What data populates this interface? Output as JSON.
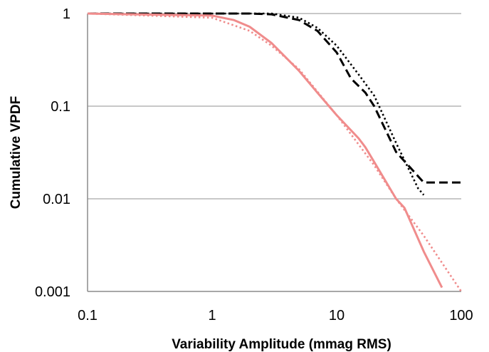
{
  "chart_data": {
    "type": "line",
    "title": "",
    "xlabel": "Variability Amplitude (mmag RMS)",
    "ylabel": "Cumulative VPDF",
    "xscale": "log",
    "yscale": "log",
    "xlim": [
      0.1,
      100
    ],
    "ylim": [
      0.001,
      1
    ],
    "xticks": [
      0.1,
      1,
      10,
      100
    ],
    "xtick_labels": [
      "0.1",
      "1",
      "10",
      "100"
    ],
    "yticks": [
      0.001,
      0.01,
      0.1,
      1
    ],
    "ytick_labels": [
      "0.001",
      "0.01",
      "0.1",
      "1"
    ],
    "grid": "horizontal",
    "legend": "none",
    "series": [
      {
        "color": "#000000",
        "style": "dashed",
        "x": [
          0.1,
          1,
          2,
          3,
          5,
          7,
          10,
          13,
          17,
          20,
          30,
          50,
          100
        ],
        "y": [
          1,
          1,
          1,
          0.98,
          0.85,
          0.65,
          0.38,
          0.2,
          0.14,
          0.1,
          0.032,
          0.015,
          0.015
        ]
      },
      {
        "color": "#000000",
        "style": "dotted",
        "x": [
          0.1,
          1,
          3,
          5,
          7,
          10,
          15,
          20,
          30,
          45,
          50
        ],
        "y": [
          1,
          1,
          1,
          0.9,
          0.7,
          0.45,
          0.22,
          0.13,
          0.04,
          0.013,
          0.011
        ]
      },
      {
        "color": "#f08c8c",
        "style": "solid",
        "x": [
          0.1,
          1,
          1.5,
          2,
          3,
          5,
          7,
          10,
          15,
          17,
          20,
          30,
          35,
          50,
          70
        ],
        "y": [
          1,
          0.95,
          0.85,
          0.72,
          0.48,
          0.24,
          0.14,
          0.08,
          0.045,
          0.036,
          0.025,
          0.01,
          0.008,
          0.0027,
          0.0011
        ]
      },
      {
        "color": "#f08c8c",
        "style": "dotted",
        "x": [
          0.1,
          1,
          2,
          3,
          5,
          10,
          20,
          30,
          50,
          100
        ],
        "y": [
          1,
          0.9,
          0.65,
          0.45,
          0.25,
          0.08,
          0.023,
          0.01,
          0.004,
          0.001
        ]
      }
    ]
  }
}
